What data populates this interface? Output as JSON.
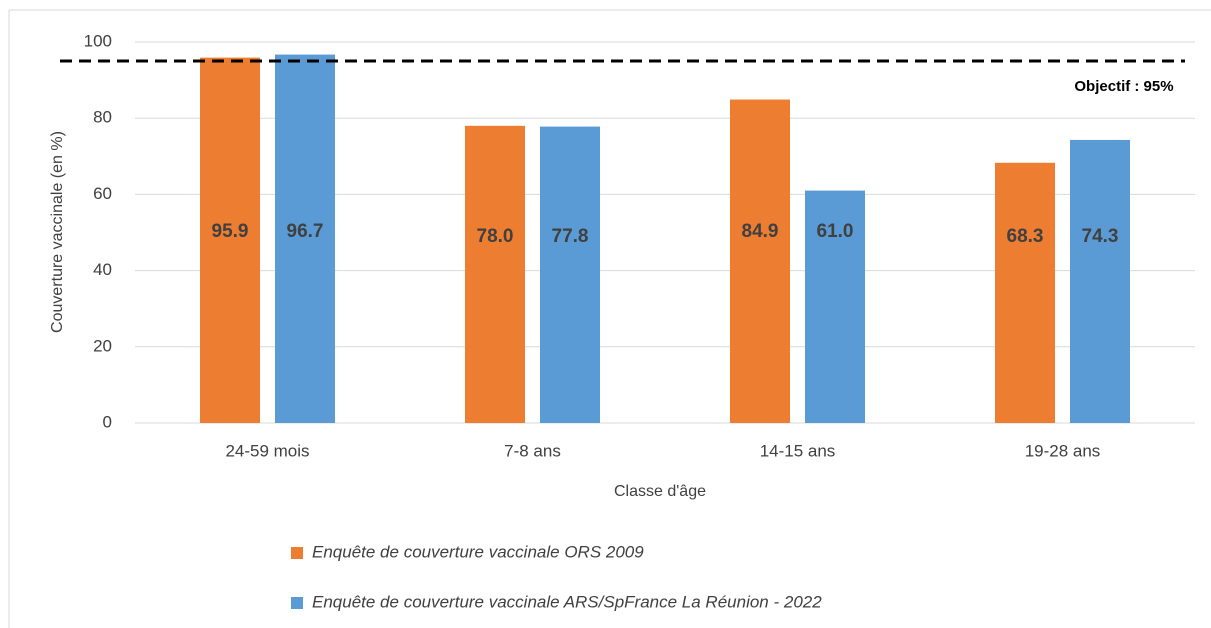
{
  "chart_data": {
    "type": "bar",
    "xlabel": "Classe d'âge",
    "ylabel": "Couverture vaccinale (en %)",
    "categories": [
      "24-59 mois",
      "7-8 ans",
      "14-15 ans",
      "19-28 ans"
    ],
    "series": [
      {
        "name": "Enquête de couverture vaccinale ORS 2009",
        "color": "#ed7d31",
        "values": [
          95.9,
          78.0,
          84.9,
          68.3
        ],
        "value_labels": [
          "95.9",
          "78.0",
          "84.9",
          "68.3"
        ]
      },
      {
        "name": "Enquête de couverture vaccinale ARS/SpFrance La Réunion -  2022",
        "color": "#5b9bd5",
        "values": [
          96.7,
          77.8,
          61.0,
          74.3
        ],
        "value_labels": [
          "96.7",
          "77.8",
          "61.0",
          "74.3"
        ]
      }
    ],
    "target": {
      "value": 95,
      "label": "Objectif : 95%"
    },
    "ylim": [
      0,
      100
    ],
    "yticks": [
      0,
      20,
      40,
      60,
      80,
      100
    ],
    "grid": true
  }
}
